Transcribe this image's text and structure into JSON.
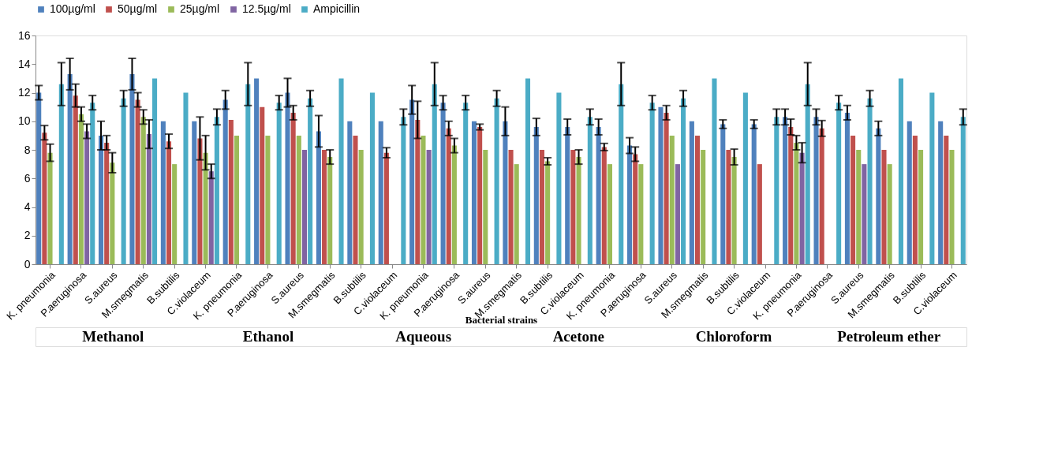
{
  "chart_data": {
    "type": "bar",
    "xlabel": "Bacterial strains",
    "categories": [
      "K. pneumonia",
      "P.aeruginosa",
      "S.aureus",
      "M.smegmatis",
      "B.subtilis",
      "C.violaceum",
      "K. pneumonia",
      "P.aeruginosa",
      "S.aureus",
      "M.smegmatis",
      "B.subtilis",
      "C.violaceum",
      "K. pneumonia",
      "P.aeruginosa",
      "S.aureus",
      "M.smegmatis",
      "B.subtilis",
      "C.violaceum",
      "K. pneumonia",
      "P.aeruginosa",
      "S.aureus",
      "M.smegmatis",
      "B.subtilis",
      "C.violaceum",
      "K. pneumonia",
      "P.aeruginosa",
      "S.aureus",
      "M.smegmatis",
      "B.subtilis",
      "C.violaceum"
    ],
    "series": [
      {
        "name": "100µg/ml",
        "color": "#4f81bd",
        "values": [
          12,
          13.3,
          9,
          13.3,
          10,
          10,
          11.5,
          13,
          12,
          9.3,
          10,
          10,
          11.5,
          11.3,
          10,
          10,
          9.6,
          9.6,
          9.6,
          8.3,
          11,
          10,
          9.8,
          9.8,
          10.3,
          10.3,
          10.6,
          9.5,
          10,
          10
        ],
        "errors": [
          0.5,
          1.1,
          1,
          1.1,
          null,
          null,
          0.65,
          null,
          1,
          1.1,
          null,
          null,
          1,
          0.5,
          null,
          1,
          0.6,
          0.55,
          0.55,
          0.55,
          null,
          null,
          0.3,
          0.3,
          0.55,
          0.55,
          0.5,
          0.5,
          null,
          null
        ]
      },
      {
        "name": "50µg/ml",
        "color": "#c0504d",
        "values": [
          9.2,
          11.8,
          8.5,
          11.5,
          8.6,
          8.8,
          10.1,
          11,
          10.6,
          8,
          9,
          7.8,
          10.1,
          9.5,
          9.6,
          8,
          8,
          8,
          8.2,
          7.7,
          10.6,
          9,
          8,
          7,
          9.6,
          9.5,
          9,
          8,
          9,
          9
        ],
        "errors": [
          0.5,
          0.8,
          0.5,
          0.5,
          0.5,
          1.5,
          null,
          null,
          0.5,
          null,
          null,
          0.35,
          1.3,
          0.5,
          0.2,
          null,
          null,
          null,
          0.25,
          0.5,
          0.5,
          null,
          null,
          null,
          0.55,
          0.55,
          null,
          null,
          null,
          null
        ]
      },
      {
        "name": "25µg/ml",
        "color": "#9bbb59",
        "values": [
          7.8,
          10.5,
          7.1,
          10.3,
          7,
          7.8,
          9,
          9,
          9,
          7.5,
          8,
          null,
          9,
          8.3,
          8,
          7,
          7.2,
          7.5,
          7,
          7,
          9,
          8,
          7.5,
          null,
          8.5,
          null,
          8,
          7,
          8,
          8
        ],
        "errors": [
          0.6,
          0.5,
          0.7,
          0.5,
          null,
          1.2,
          null,
          null,
          null,
          0.5,
          null,
          null,
          null,
          0.5,
          null,
          null,
          0.25,
          0.5,
          null,
          null,
          null,
          null,
          0.55,
          null,
          0.5,
          null,
          null,
          null,
          null,
          null
        ]
      },
      {
        "name": "12.5µg/ml",
        "color": "#8064a2",
        "values": [
          null,
          9.3,
          null,
          9.1,
          null,
          6.5,
          null,
          null,
          8,
          null,
          null,
          null,
          8,
          null,
          null,
          null,
          null,
          null,
          null,
          null,
          7,
          null,
          null,
          null,
          7.8,
          null,
          7,
          null,
          null,
          null
        ],
        "errors": [
          null,
          0.5,
          null,
          1,
          null,
          0.5,
          null,
          null,
          null,
          null,
          null,
          null,
          null,
          null,
          null,
          null,
          null,
          null,
          null,
          null,
          null,
          null,
          null,
          null,
          0.7,
          null,
          null,
          null,
          null,
          null
        ]
      },
      {
        "name": "Ampicillin",
        "color": "#4bacc6",
        "values": [
          12.6,
          11.3,
          11.6,
          13,
          12,
          10.3,
          12.6,
          11.3,
          11.6,
          13,
          12,
          10.3,
          12.6,
          11.3,
          11.6,
          13,
          12,
          10.3,
          12.6,
          11.3,
          11.6,
          13,
          12,
          10.3,
          12.6,
          11.3,
          11.6,
          13,
          12,
          10.3
        ],
        "errors": [
          1.5,
          0.5,
          0.55,
          null,
          null,
          0.55,
          1.5,
          0.5,
          0.55,
          null,
          null,
          0.55,
          1.5,
          0.5,
          0.55,
          null,
          null,
          0.55,
          1.5,
          0.5,
          0.55,
          null,
          null,
          0.55,
          1.5,
          0.5,
          0.55,
          null,
          null,
          0.55
        ]
      }
    ],
    "ylim": [
      0,
      16
    ],
    "yticks": [
      0,
      2,
      4,
      6,
      8,
      10,
      12,
      14,
      16
    ],
    "grid": false,
    "legend": "top",
    "annotations": [
      "Methanol",
      "Ethanol",
      "Aqueous",
      "Acetone",
      "Chloroform",
      "Petroleum ether"
    ]
  }
}
